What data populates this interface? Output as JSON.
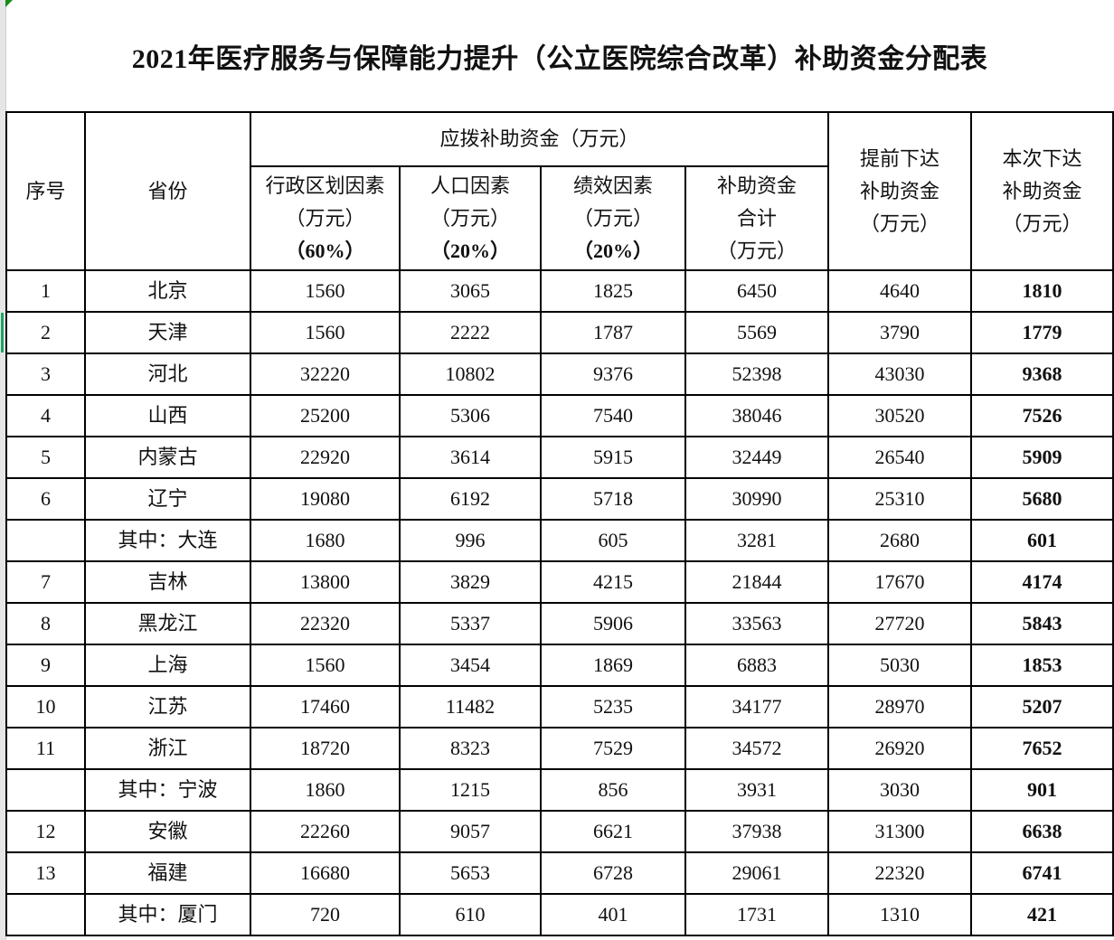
{
  "title": "2021年医疗服务与保障能力提升（公立医院综合改革）补助资金分配表",
  "headers": {
    "seq": "序号",
    "province": "省份",
    "group": "应拨补助资金（万元）",
    "admin": [
      "行政区划因素",
      "（万元）",
      "（60%）"
    ],
    "population": [
      "人口因素",
      "（万元）",
      "（20%）"
    ],
    "performance": [
      "绩效因素",
      "（万元）",
      "（20%）"
    ],
    "total": [
      "补助资金",
      "合计",
      "（万元）"
    ],
    "advance": [
      "提前下达",
      "补助资金",
      "（万元）"
    ],
    "current": [
      "本次下达",
      "补助资金",
      "（万元）"
    ]
  },
  "rows": [
    [
      "1",
      "北京",
      "1560",
      "3065",
      "1825",
      "6450",
      "4640",
      "1810"
    ],
    [
      "2",
      "天津",
      "1560",
      "2222",
      "1787",
      "5569",
      "3790",
      "1779"
    ],
    [
      "3",
      "河北",
      "32220",
      "10802",
      "9376",
      "52398",
      "43030",
      "9368"
    ],
    [
      "4",
      "山西",
      "25200",
      "5306",
      "7540",
      "38046",
      "30520",
      "7526"
    ],
    [
      "5",
      "内蒙古",
      "22920",
      "3614",
      "5915",
      "32449",
      "26540",
      "5909"
    ],
    [
      "6",
      "辽宁",
      "19080",
      "6192",
      "5718",
      "30990",
      "25310",
      "5680"
    ],
    [
      "",
      "其中：大连",
      "1680",
      "996",
      "605",
      "3281",
      "2680",
      "601"
    ],
    [
      "7",
      "吉林",
      "13800",
      "3829",
      "4215",
      "21844",
      "17670",
      "4174"
    ],
    [
      "8",
      "黑龙江",
      "22320",
      "5337",
      "5906",
      "33563",
      "27720",
      "5843"
    ],
    [
      "9",
      "上海",
      "1560",
      "3454",
      "1869",
      "6883",
      "5030",
      "1853"
    ],
    [
      "10",
      "江苏",
      "17460",
      "11482",
      "5235",
      "34177",
      "28970",
      "5207"
    ],
    [
      "11",
      "浙江",
      "18720",
      "8323",
      "7529",
      "34572",
      "26920",
      "7652"
    ],
    [
      "",
      "其中：宁波",
      "1860",
      "1215",
      "856",
      "3931",
      "3030",
      "901"
    ],
    [
      "12",
      "安徽",
      "22260",
      "9057",
      "6621",
      "37938",
      "31300",
      "6638"
    ],
    [
      "13",
      "福建",
      "16680",
      "5653",
      "6728",
      "29061",
      "22320",
      "6741"
    ],
    [
      "",
      "其中：厦门",
      "720",
      "610",
      "401",
      "1731",
      "1310",
      "421"
    ]
  ]
}
